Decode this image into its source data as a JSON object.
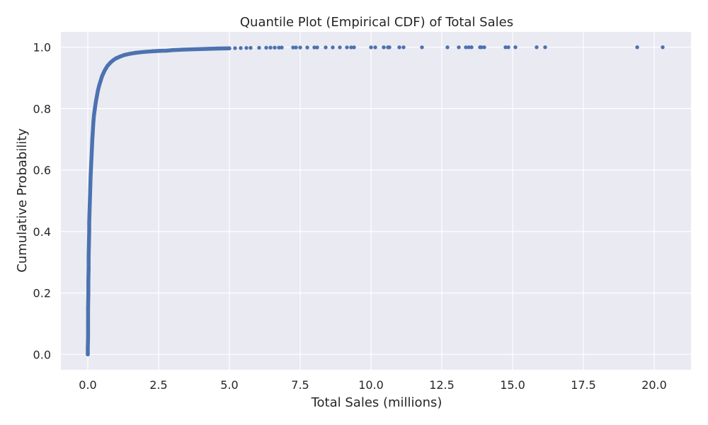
{
  "chart_data": {
    "type": "scatter",
    "title": "Quantile Plot (Empirical CDF) of Total Sales",
    "xlabel": "Total Sales (millions)",
    "ylabel": "Cumulative Probability",
    "xlim": [
      -0.95,
      21.3
    ],
    "ylim": [
      -0.05,
      1.05
    ],
    "xticks": [
      0.0,
      2.5,
      5.0,
      7.5,
      10.0,
      12.5,
      15.0,
      17.5,
      20.0
    ],
    "xtick_labels": [
      "0.0",
      "2.5",
      "5.0",
      "7.5",
      "10.0",
      "12.5",
      "15.0",
      "17.5",
      "20.0"
    ],
    "yticks": [
      0.0,
      0.2,
      0.4,
      0.6,
      0.8,
      1.0
    ],
    "ytick_labels": [
      "0.0",
      "0.2",
      "0.4",
      "0.6",
      "0.8",
      "1.0"
    ],
    "grid": true,
    "marker_color": "#4c72b0",
    "background_color": "#eaeaf2",
    "grid_color": "#ffffff",
    "series": [
      {
        "x": [
          0.0,
          0.0,
          0.01,
          0.01,
          0.01,
          0.02,
          0.02,
          0.03,
          0.03,
          0.04,
          0.05,
          0.05,
          0.06,
          0.07,
          0.08,
          0.09,
          0.1,
          0.12,
          0.14,
          0.16,
          0.18,
          0.2,
          0.22,
          0.25,
          0.28,
          0.32,
          0.36,
          0.4,
          0.45,
          0.5,
          0.6,
          0.7,
          0.8,
          0.9,
          1.0,
          1.15,
          1.3,
          1.5,
          1.7,
          2.0,
          2.3,
          2.5,
          2.8,
          3.0,
          3.3,
          3.6,
          4.0,
          4.3,
          4.6,
          5.0,
          5.2,
          5.4,
          5.6,
          5.75,
          6.05,
          6.3,
          6.45,
          6.6,
          6.75,
          6.85,
          7.25,
          7.35,
          7.5,
          7.75,
          8.0,
          8.1,
          8.4,
          8.65,
          8.9,
          9.15,
          9.3,
          9.4,
          10.0,
          10.15,
          10.45,
          10.6,
          10.65,
          11.0,
          11.15,
          11.8,
          12.7,
          13.1,
          13.35,
          13.45,
          13.55,
          13.85,
          13.9,
          14.0,
          14.75,
          14.85,
          15.1,
          15.85,
          16.15,
          19.4,
          20.3
        ],
        "y": [
          0.0,
          0.02,
          0.06,
          0.1,
          0.15,
          0.2,
          0.24,
          0.28,
          0.32,
          0.36,
          0.4,
          0.43,
          0.46,
          0.49,
          0.52,
          0.55,
          0.58,
          0.62,
          0.66,
          0.7,
          0.73,
          0.76,
          0.78,
          0.8,
          0.82,
          0.84,
          0.86,
          0.875,
          0.89,
          0.905,
          0.925,
          0.94,
          0.95,
          0.958,
          0.964,
          0.97,
          0.975,
          0.979,
          0.982,
          0.985,
          0.987,
          0.988,
          0.989,
          0.9905,
          0.992,
          0.993,
          0.994,
          0.995,
          0.9958,
          0.9965,
          0.997,
          0.9974,
          0.9978,
          0.998,
          0.9983,
          0.9985,
          0.9987,
          0.9988,
          0.9989,
          0.999,
          0.9991,
          0.9991,
          0.9992,
          0.9992,
          0.9993,
          0.9993,
          0.9994,
          0.9994,
          0.9995,
          0.9995,
          0.9995,
          0.9996,
          0.9996,
          0.9996,
          0.9997,
          0.9997,
          0.9997,
          0.9997,
          0.9998,
          0.9998,
          0.9998,
          0.9998,
          0.9998,
          0.9999,
          0.9999,
          0.9999,
          0.9999,
          0.9999,
          0.9999,
          0.9999,
          1.0,
          1.0,
          1.0,
          1.0,
          1.0
        ]
      }
    ]
  }
}
